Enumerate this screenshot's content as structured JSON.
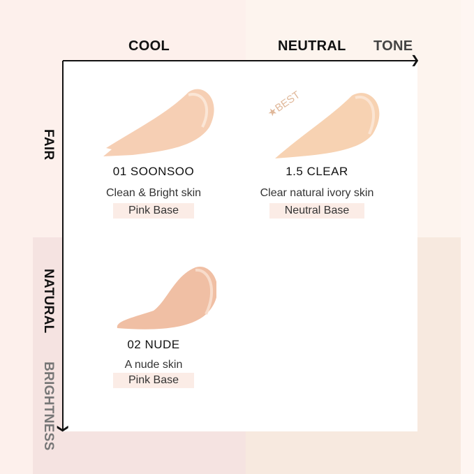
{
  "axes": {
    "x_title": "TONE",
    "x_labels": [
      "COOL",
      "NEUTRAL"
    ],
    "y_title": "BRIGHTNESS",
    "y_labels": [
      "FAIR",
      "NATURAL"
    ]
  },
  "badge": "★BEST",
  "shades": [
    {
      "name": "01 SOONSOO",
      "desc": "Clean & Bright skin",
      "base": "Pink Base",
      "color": "#f6cfb4"
    },
    {
      "name": "1.5 CLEAR",
      "desc": "Clear natural ivory skin",
      "base": "Neutral Base",
      "color": "#f7d2b2"
    },
    {
      "name": "02 NUDE",
      "desc": "A nude skin",
      "base": "Pink Base",
      "color": "#f0bfa4"
    }
  ],
  "colors": {
    "bg_pink": "#fdf0ec",
    "bg_cream": "#fdf4ee",
    "bg_pink_dark": "#f5e3e1",
    "bg_cream_dark": "#f7e9df",
    "tag": "#fbece6"
  }
}
